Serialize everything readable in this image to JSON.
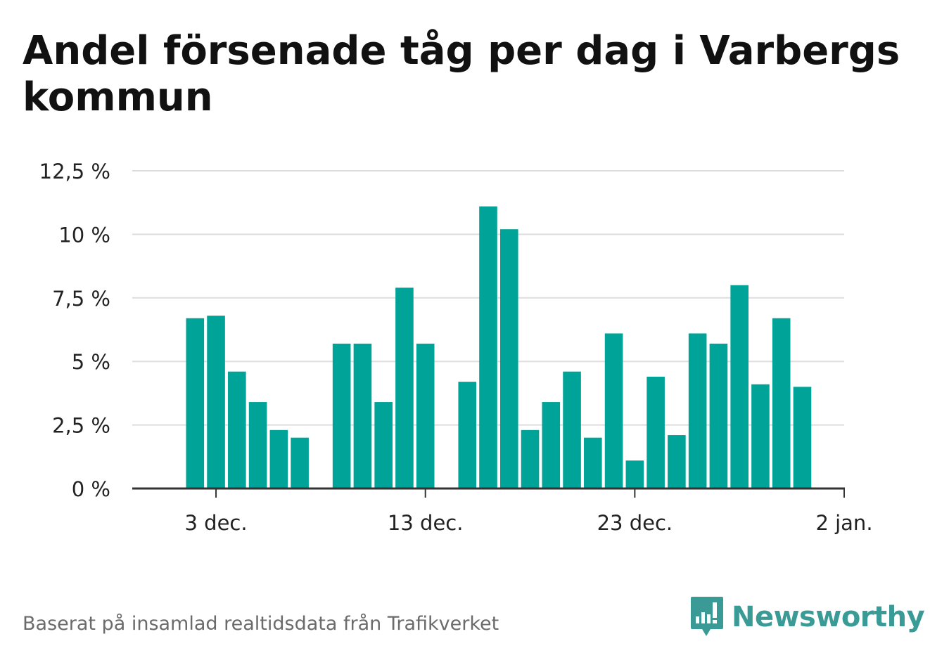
{
  "title": "Andel försenade tåg per dag i Varbergs kommun",
  "footer": "Baserat på insamlad realtidsdata från Trafikverket",
  "brand": {
    "name": "Newsworthy",
    "icon": "newsworthy-logo-icon",
    "color": "#3a9a95"
  },
  "colors": {
    "bar": "#00a398",
    "grid": "#dddddd",
    "axis": "#333333"
  },
  "chart_data": {
    "type": "bar",
    "ylim": [
      0,
      12.5
    ],
    "yticks": [
      {
        "value": 0,
        "label": "0 %"
      },
      {
        "value": 2.5,
        "label": "2,5 %"
      },
      {
        "value": 5,
        "label": "5 %"
      },
      {
        "value": 7.5,
        "label": "7,5 %"
      },
      {
        "value": 10,
        "label": "10 %"
      },
      {
        "value": 12.5,
        "label": "12,5 %"
      }
    ],
    "xlim": [
      "2023-11-29",
      "2024-01-02"
    ],
    "xticks": [
      {
        "date": "2023-12-03",
        "label": "3 dec."
      },
      {
        "date": "2023-12-13",
        "label": "13 dec."
      },
      {
        "date": "2023-12-23",
        "label": "23 dec."
      },
      {
        "date": "2024-01-02",
        "label": "2 jan."
      }
    ],
    "grid": true,
    "x": [
      "2023-11-29",
      "2023-11-30",
      "2023-12-01",
      "2023-12-02",
      "2023-12-03",
      "2023-12-04",
      "2023-12-05",
      "2023-12-06",
      "2023-12-07",
      "2023-12-08",
      "2023-12-09",
      "2023-12-10",
      "2023-12-11",
      "2023-12-12",
      "2023-12-13",
      "2023-12-14",
      "2023-12-15",
      "2023-12-16",
      "2023-12-17",
      "2023-12-18",
      "2023-12-19",
      "2023-12-20",
      "2023-12-21",
      "2023-12-22",
      "2023-12-23",
      "2023-12-24",
      "2023-12-25",
      "2023-12-26",
      "2023-12-27",
      "2023-12-28",
      "2023-12-29",
      "2023-12-30",
      "2023-12-31",
      "2024-01-01",
      "2024-01-02"
    ],
    "values": [
      null,
      null,
      null,
      6.7,
      6.8,
      4.6,
      3.4,
      2.3,
      2.0,
      null,
      5.7,
      5.7,
      3.4,
      7.9,
      5.7,
      null,
      4.2,
      11.1,
      10.2,
      2.3,
      3.4,
      4.6,
      2.0,
      6.1,
      1.1,
      4.4,
      2.1,
      6.1,
      5.7,
      8.0,
      4.1,
      6.7,
      4.0,
      null,
      null
    ]
  }
}
